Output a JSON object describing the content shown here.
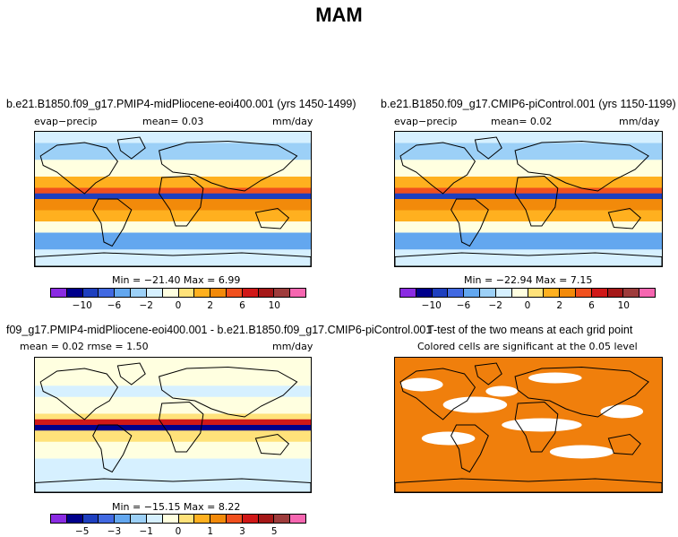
{
  "title": "MAM",
  "panels": {
    "p1": {
      "title": "b.e21.B1850.f09_g17.PMIP4-midPliocene-eoi400.001 (yrs 1450-1499)",
      "left": "evap−precip",
      "center": "mean=    0.03",
      "right": "mm/day",
      "minmax": "Min = −21.40  Max =    6.99",
      "ticks": [
        "−10",
        "−6",
        "−2",
        "0",
        "2",
        "6",
        "10"
      ]
    },
    "p2": {
      "title": "b.e21.B1850.f09_g17.CMIP6-piControl.001 (yrs 1150-1199)",
      "left": "evap−precip",
      "center": "mean=    0.02",
      "right": "mm/day",
      "minmax": "Min = −22.94  Max =    7.15",
      "ticks": [
        "−10",
        "−6",
        "−2",
        "0",
        "2",
        "6",
        "10"
      ]
    },
    "p3": {
      "title": "f09_g17.PMIP4-midPliocene-eoi400.001 - b.e21.B1850.f09_g17.CMIP6-piControl.001",
      "left": "mean =    0.02     rmse =    1.50",
      "right": "mm/day",
      "minmax": "Min = −15.15  Max =    8.22",
      "ticks": [
        "−5",
        "−3",
        "−1",
        "0",
        "1",
        "3",
        "5"
      ]
    },
    "p4": {
      "title": "T-test of the two means at each grid point",
      "subtitle": "Colored cells are significant at the 0.05 level"
    }
  },
  "colors": {
    "colorbar": [
      "#8a2be2",
      "#00008b",
      "#1e3fbf",
      "#4169e1",
      "#63a7ef",
      "#9cd0f7",
      "#d6f0ff",
      "#ffffe0",
      "#ffe27a",
      "#ffb01f",
      "#f28a0a",
      "#f0501e",
      "#d01818",
      "#a51818",
      "#9e3c3c",
      "#f566b0"
    ],
    "significant": "#f07f0c"
  }
}
